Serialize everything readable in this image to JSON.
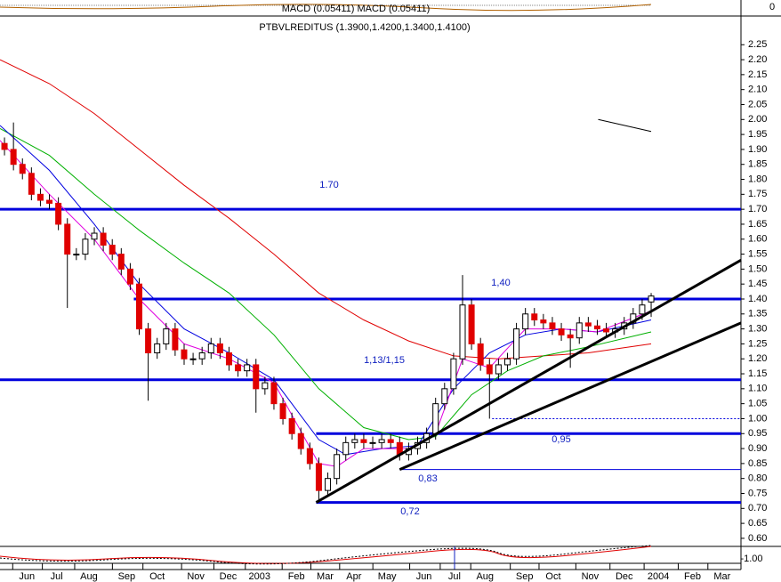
{
  "chart_data": {
    "type": "candlestick",
    "title": "PTBVLREDITUS (1.3900,1.4200,1.3400,1.4100)",
    "macd_label": "MACD (0.05411) MACD (0.05411)",
    "macd_axis_label": "0",
    "osc_axis_label": "-1.00",
    "xlim": [
      -0.5,
      82
    ],
    "ylim": [
      0.57,
      2.34
    ],
    "xticks": [
      {
        "value": 2.5,
        "label": "Jun"
      },
      {
        "value": 5.8,
        "label": "Jul"
      },
      {
        "value": 9.4,
        "label": "Aug"
      },
      {
        "value": 13.6,
        "label": "Sep"
      },
      {
        "value": 17.0,
        "label": "Oct"
      },
      {
        "value": 21.3,
        "label": "Nov"
      },
      {
        "value": 24.9,
        "label": "Dec"
      },
      {
        "value": 28.4,
        "label": "2003"
      },
      {
        "value": 32.5,
        "label": "Feb"
      },
      {
        "value": 35.7,
        "label": "Mar"
      },
      {
        "value": 38.9,
        "label": "Apr"
      },
      {
        "value": 42.6,
        "label": "May"
      },
      {
        "value": 46.7,
        "label": "Jun"
      },
      {
        "value": 50.1,
        "label": "Jul"
      },
      {
        "value": 53.5,
        "label": "Aug"
      },
      {
        "value": 57.9,
        "label": "Sep"
      },
      {
        "value": 61.1,
        "label": "Oct"
      },
      {
        "value": 65.2,
        "label": "Nov"
      },
      {
        "value": 69.0,
        "label": "Dec"
      },
      {
        "value": 72.8,
        "label": "2004"
      },
      {
        "value": 76.6,
        "label": "Feb"
      },
      {
        "value": 79.9,
        "label": "Mar"
      }
    ],
    "yticks": [
      {
        "value": 0.6,
        "label": "0.60"
      },
      0.65,
      {
        "value": 0.7,
        "label": "0.70"
      },
      0.75,
      {
        "value": 0.8,
        "label": "0.80"
      },
      0.85,
      {
        "value": 0.9,
        "label": "0.90"
      },
      0.95,
      {
        "value": 1,
        "label": "1.00"
      },
      1.05,
      {
        "value": 1.1,
        "label": "1.10"
      },
      1.15,
      {
        "value": 1.2,
        "label": "1.20"
      },
      1.25,
      {
        "value": 1.3,
        "label": "1.30"
      },
      1.35,
      {
        "value": 1.4,
        "label": "1.40"
      },
      1.45,
      {
        "value": 1.5,
        "label": "1.50"
      },
      1.55,
      {
        "value": 1.6,
        "label": "1.60"
      },
      1.65,
      {
        "value": 1.7,
        "label": "1.70"
      },
      1.75,
      {
        "value": 1.8,
        "label": "1.80"
      },
      1.85,
      {
        "value": 1.9,
        "label": "1.90"
      },
      1.95,
      {
        "value": 2,
        "label": "2.00"
      },
      2.05,
      {
        "value": 2.1,
        "label": "2.10"
      },
      2.15,
      {
        "value": 2.2,
        "label": "2.20"
      },
      2.25
    ],
    "up_color": "#ffffff",
    "down_color": "#e00000",
    "open": [
      1.92,
      1.9,
      1.85,
      1.82,
      1.75,
      1.73,
      1.72,
      1.65,
      1.55,
      1.55,
      1.6,
      1.62,
      1.58,
      1.55,
      1.5,
      1.45,
      1.3,
      1.22,
      1.25,
      1.3,
      1.23,
      1.2,
      1.2,
      1.22,
      1.25,
      1.22,
      1.18,
      1.16,
      1.18,
      1.1,
      1.12,
      1.05,
      1.0,
      0.95,
      0.9,
      0.85,
      0.76,
      0.8,
      0.88,
      0.92,
      0.93,
      0.92,
      0.92,
      0.93,
      0.92,
      0.88,
      0.9,
      0.92,
      0.95,
      1.05,
      1.1,
      1.2,
      1.38,
      1.25,
      1.18,
      1.15,
      1.18,
      1.2,
      1.3,
      1.35,
      1.33,
      1.32,
      1.3,
      1.28,
      1.27,
      1.32,
      1.31,
      1.3,
      1.29,
      1.3,
      1.32,
      1.35,
      1.39
    ],
    "high": [
      1.94,
      1.99,
      1.87,
      1.84,
      1.77,
      1.75,
      1.74,
      1.67,
      1.57,
      1.62,
      1.64,
      1.64,
      1.6,
      1.57,
      1.52,
      1.47,
      1.32,
      1.27,
      1.32,
      1.32,
      1.25,
      1.22,
      1.24,
      1.27,
      1.27,
      1.24,
      1.2,
      1.2,
      1.2,
      1.14,
      1.14,
      1.07,
      1.02,
      0.97,
      0.92,
      0.87,
      0.82,
      0.9,
      0.94,
      0.95,
      0.95,
      0.94,
      0.95,
      0.95,
      0.94,
      0.92,
      0.94,
      0.97,
      1.07,
      1.12,
      1.22,
      1.48,
      1.4,
      1.27,
      1.2,
      1.2,
      1.22,
      1.32,
      1.37,
      1.37,
      1.35,
      1.34,
      1.32,
      1.3,
      1.34,
      1.34,
      1.33,
      1.32,
      1.32,
      1.34,
      1.37,
      1.4,
      1.42
    ],
    "low": [
      1.88,
      1.83,
      1.8,
      1.73,
      1.71,
      1.7,
      1.63,
      1.37,
      1.53,
      1.53,
      1.58,
      1.56,
      1.53,
      1.48,
      1.43,
      1.28,
      1.06,
      1.2,
      1.23,
      1.21,
      1.18,
      1.18,
      1.18,
      1.2,
      1.2,
      1.16,
      1.14,
      1.14,
      1.02,
      1.08,
      1.03,
      0.98,
      0.93,
      0.88,
      0.83,
      0.72,
      0.74,
      0.78,
      0.86,
      0.9,
      0.9,
      0.9,
      0.9,
      0.9,
      0.86,
      0.86,
      0.88,
      0.9,
      0.93,
      1.03,
      1.08,
      1.18,
      1.23,
      1.16,
      1.0,
      1.13,
      1.16,
      1.18,
      1.28,
      1.31,
      1.3,
      1.28,
      1.26,
      1.17,
      1.25,
      1.29,
      1.28,
      1.27,
      1.27,
      1.28,
      1.3,
      1.33,
      1.34
    ],
    "close": [
      1.9,
      1.85,
      1.82,
      1.75,
      1.73,
      1.72,
      1.65,
      1.55,
      1.55,
      1.6,
      1.62,
      1.58,
      1.55,
      1.5,
      1.45,
      1.3,
      1.22,
      1.25,
      1.3,
      1.23,
      1.2,
      1.2,
      1.22,
      1.25,
      1.22,
      1.18,
      1.16,
      1.18,
      1.1,
      1.12,
      1.05,
      1.0,
      0.95,
      0.9,
      0.85,
      0.76,
      0.8,
      0.88,
      0.92,
      0.93,
      0.92,
      0.92,
      0.93,
      0.92,
      0.88,
      0.9,
      0.92,
      0.95,
      1.05,
      1.1,
      1.2,
      1.38,
      1.25,
      1.18,
      1.15,
      1.18,
      1.2,
      1.3,
      1.35,
      1.33,
      1.32,
      1.3,
      1.28,
      1.27,
      1.32,
      1.31,
      1.3,
      1.29,
      1.3,
      1.32,
      1.35,
      1.38,
      1.41
    ],
    "averages": [
      {
        "color": "#e00000",
        "x": [
          -0.5,
          5,
          10,
          15,
          20,
          25,
          30,
          35,
          40,
          45,
          50,
          55,
          60,
          65,
          72
        ],
        "values": [
          2.2,
          2.12,
          2.02,
          1.9,
          1.78,
          1.67,
          1.55,
          1.42,
          1.33,
          1.26,
          1.21,
          1.2,
          1.21,
          1.22,
          1.25
        ]
      },
      {
        "color": "#00b000",
        "x": [
          -0.5,
          5,
          10,
          15,
          20,
          25,
          30,
          35,
          40,
          45,
          48,
          52,
          56,
          60,
          65,
          72
        ],
        "values": [
          1.97,
          1.88,
          1.75,
          1.63,
          1.52,
          1.42,
          1.28,
          1.1,
          0.97,
          0.93,
          0.94,
          1.08,
          1.16,
          1.21,
          1.24,
          1.29
        ]
      },
      {
        "color": "#0000e0",
        "x": [
          -0.5,
          5,
          10,
          15,
          20,
          25,
          30,
          35,
          38,
          42,
          46,
          50,
          54,
          58,
          62,
          66,
          72
        ],
        "values": [
          1.98,
          1.83,
          1.65,
          1.45,
          1.3,
          1.22,
          1.13,
          0.93,
          0.88,
          0.9,
          0.91,
          1.1,
          1.22,
          1.28,
          1.3,
          1.29,
          1.33
        ]
      },
      {
        "color": "#e000e0",
        "x": [
          -0.5,
          5,
          10,
          15,
          20,
          25,
          30,
          35,
          37,
          40,
          45,
          48,
          51,
          54,
          58,
          62,
          66,
          72
        ],
        "values": [
          1.93,
          1.75,
          1.6,
          1.4,
          1.25,
          1.2,
          1.12,
          0.85,
          0.84,
          0.9,
          0.9,
          0.95,
          1.2,
          1.17,
          1.3,
          1.3,
          1.29,
          1.36
        ]
      }
    ],
    "levels": [
      {
        "value": 1.7,
        "from": -0.5,
        "style": "thick"
      },
      {
        "value": 1.4,
        "from": 14.4,
        "style": "thick"
      },
      {
        "value": 1.13,
        "from": -0.5,
        "style": "thick"
      },
      {
        "value": 0.95,
        "from": 34.7,
        "style": "thick"
      },
      {
        "value": 0.72,
        "from": 34.7,
        "style": "thick"
      },
      {
        "value": 1,
        "from": 54.3,
        "style": "dotted"
      },
      {
        "value": 0.83,
        "from": 44,
        "style": "thin"
      }
    ],
    "trendlines": [
      {
        "x": [
          34.7,
          82
        ],
        "values": [
          0.72,
          1.53
        ],
        "width": 3
      },
      {
        "x": [
          44,
          82
        ],
        "values": [
          0.83,
          1.32
        ],
        "width": 3
      },
      {
        "x": [
          66.1,
          72
        ],
        "values": [
          2.0,
          1.96
        ],
        "width": 1
      }
    ],
    "annotations": [
      "1.70",
      "1,40",
      "1,13/1,15",
      "0,95",
      "0,83",
      "0,72"
    ]
  }
}
